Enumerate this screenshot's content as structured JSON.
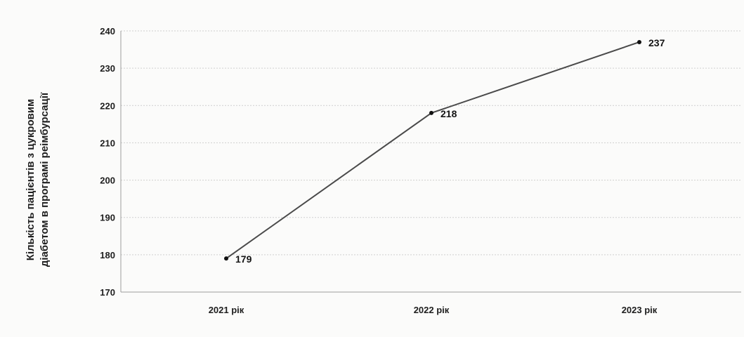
{
  "chart_data": {
    "type": "line",
    "x": [
      "2021 рік",
      "2022 рік",
      "2023 рік"
    ],
    "series": [
      {
        "values": [
          179,
          218,
          237
        ]
      }
    ],
    "title": "",
    "xlabel": "",
    "ylabel_lines": [
      "Кількість пацієнтів з цукровим",
      "діабетом в програмі реімбурсації"
    ],
    "ylim": [
      170,
      240
    ],
    "yticks": [
      170,
      180,
      190,
      200,
      210,
      220,
      230,
      240
    ],
    "grid": true,
    "legend": "none",
    "colors": {
      "line": "#4a4a4a",
      "point": "#111111",
      "grid": "#cfcfcf",
      "text": "#1e1e1e"
    }
  }
}
